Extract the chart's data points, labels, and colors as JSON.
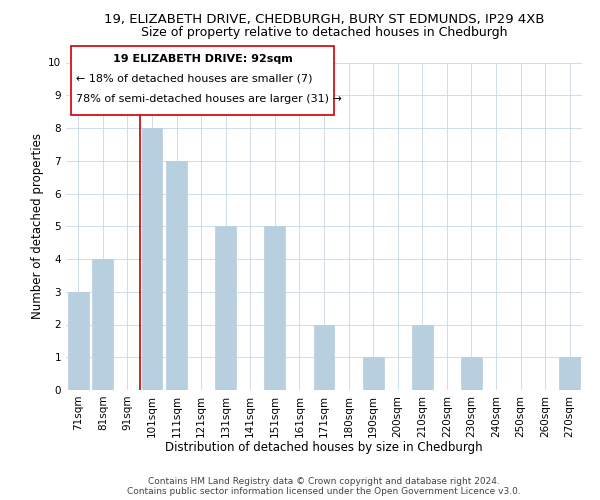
{
  "title_line1": "19, ELIZABETH DRIVE, CHEDBURGH, BURY ST EDMUNDS, IP29 4XB",
  "title_line2": "Size of property relative to detached houses in Chedburgh",
  "xlabel": "Distribution of detached houses by size in Chedburgh",
  "ylabel": "Number of detached properties",
  "categories": [
    "71sqm",
    "81sqm",
    "91sqm",
    "101sqm",
    "111sqm",
    "121sqm",
    "131sqm",
    "141sqm",
    "151sqm",
    "161sqm",
    "171sqm",
    "180sqm",
    "190sqm",
    "200sqm",
    "210sqm",
    "220sqm",
    "230sqm",
    "240sqm",
    "250sqm",
    "260sqm",
    "270sqm"
  ],
  "values": [
    3,
    4,
    0,
    8,
    7,
    0,
    5,
    0,
    5,
    0,
    2,
    0,
    1,
    0,
    2,
    0,
    1,
    0,
    0,
    0,
    1
  ],
  "bar_color": "#b8cfe0",
  "reference_line_color": "#cc0000",
  "annotation_text_line1": "19 ELIZABETH DRIVE: 92sqm",
  "annotation_text_line2": "← 18% of detached houses are smaller (7)",
  "annotation_text_line3": "78% of semi-detached houses are larger (31) →",
  "annotation_box_color": "#ffffff",
  "annotation_border_color": "#cc0000",
  "ylim": [
    0,
    10
  ],
  "yticks": [
    0,
    1,
    2,
    3,
    4,
    5,
    6,
    7,
    8,
    9,
    10
  ],
  "footer_line1": "Contains HM Land Registry data © Crown copyright and database right 2024.",
  "footer_line2": "Contains public sector information licensed under the Open Government Licence v3.0.",
  "bg_color": "#ffffff",
  "grid_color": "#c8d8e8",
  "title_fontsize": 9.5,
  "subtitle_fontsize": 9,
  "axis_label_fontsize": 8.5,
  "tick_fontsize": 7.5,
  "annotation_fontsize": 8,
  "footer_fontsize": 6.5
}
